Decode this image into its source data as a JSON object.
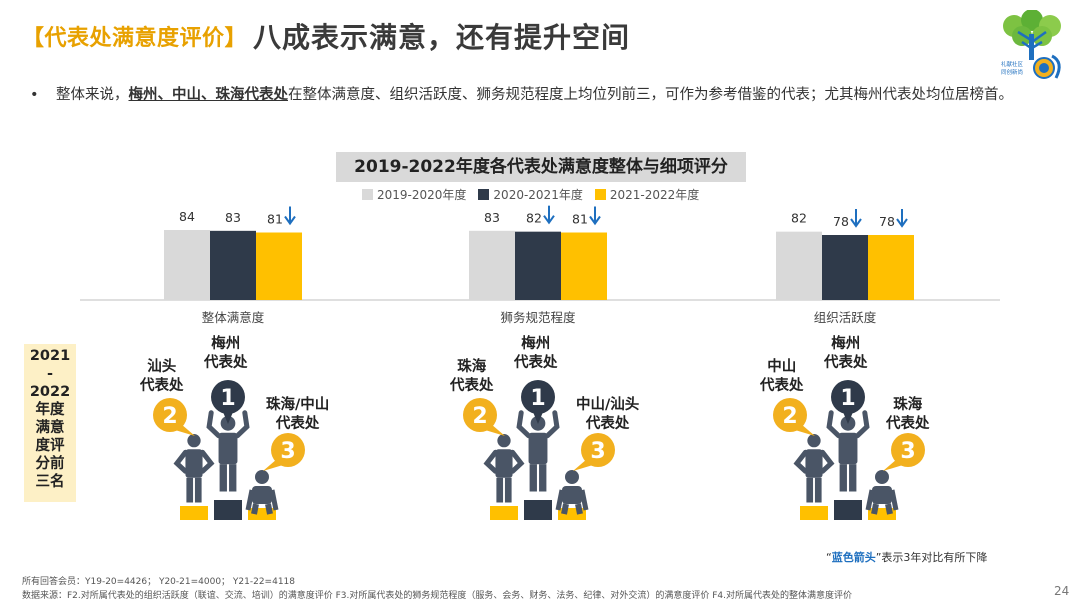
{
  "header": {
    "tag": "【代表处满意度评价】",
    "title": "八成表示满意，还有提升空间"
  },
  "bullet": {
    "marker": "•",
    "prefix": "整体来说，",
    "emphasis": "梅州、中山、珠海代表处",
    "suffix": "在整体满意度、组织活跃度、狮务规范程度上均位列前三，可作为参考借鉴的代表；尤其梅州代表处均位居榜首。"
  },
  "colors": {
    "y2019": "#D9D9D9",
    "y2020": "#2F3A4A",
    "y2021": "#FFC000",
    "arrow": "#1E6FBF",
    "pod_circle_gold": "#F2B01E",
    "pod_circle_dark": "#2F3A4A"
  },
  "chart_data": {
    "type": "bar",
    "title": "2019-2022年度各代表处满意度整体与细项评分",
    "categories": [
      "整体满意度",
      "狮务规范程度",
      "组织活跃度"
    ],
    "series": [
      {
        "name": "2019-2020年度",
        "values": [
          84,
          83,
          82
        ]
      },
      {
        "name": "2020-2021年度",
        "values": [
          83,
          82,
          78
        ]
      },
      {
        "name": "2021-2022年度",
        "values": [
          81,
          81,
          78
        ]
      }
    ],
    "down_arrows": [
      [
        false,
        false,
        true
      ],
      [
        false,
        true,
        true
      ],
      [
        false,
        true,
        true
      ]
    ],
    "ylim": [
      60,
      90
    ],
    "xlabel": "",
    "ylabel": ""
  },
  "rank_box": {
    "label_lines": [
      "2021",
      "-",
      "2022",
      "年度",
      "满意",
      "度评",
      "分前",
      "三名"
    ]
  },
  "podiums": [
    {
      "first": [
        "梅州",
        "代表处"
      ],
      "second": [
        "汕头",
        "代表处"
      ],
      "third": [
        "珠海/中山",
        "代表处"
      ]
    },
    {
      "first": [
        "梅州",
        "代表处"
      ],
      "second": [
        "珠海",
        "代表处"
      ],
      "third": [
        "中山/汕头",
        "代表处"
      ]
    },
    {
      "first": [
        "梅州",
        "代表处"
      ],
      "second": [
        "中山",
        "代表处"
      ],
      "third": [
        "珠海",
        "代表处"
      ]
    }
  ],
  "rank_numbers": [
    "1",
    "2",
    "3"
  ],
  "note": {
    "open_quote": "“",
    "highlight": "蓝色箭头",
    "close_text": "”表示3年对比有所下降"
  },
  "footer": {
    "line1": "所有回答会员：Y19-20=4426；  Y20-21=4000；  Y21-22=4118",
    "line2": "数据来源：F2.对所属代表处的组织活跃度（联谊、交流、培训）的满意度评价 F3.对所属代表处的狮务规范程度（服务、会务、财务、法务、纪律、对外交流）的满意度评价 F4.对所属代表处的整体满意度评价"
  },
  "page_number": "24",
  "logo_text": [
    "礼献社区",
    "同创新尚"
  ]
}
